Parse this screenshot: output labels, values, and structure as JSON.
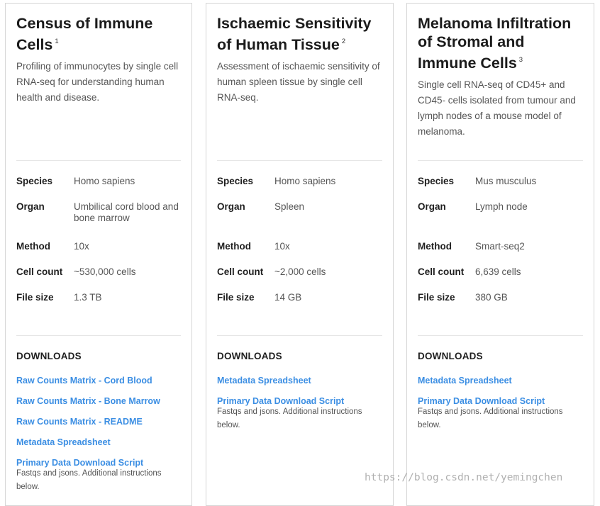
{
  "cards": [
    {
      "title": "Census of Immune Cells",
      "sup": "1",
      "description": "Profiling of immunocytes by single cell RNA-seq for understanding human health and disease.",
      "meta": {
        "species_label": "Species",
        "species": "Homo sapiens",
        "organ_label": "Organ",
        "organ": "Umbilical cord blood and bone marrow",
        "method_label": "Method",
        "method": "10x",
        "cell_count_label": "Cell count",
        "cell_count": "~530,000 cells",
        "file_size_label": "File size",
        "file_size": "1.3 TB"
      },
      "downloads_heading": "DOWNLOADS",
      "links": [
        "Raw Counts Matrix - Cord Blood",
        "Raw Counts Matrix - Bone Marrow",
        "Raw Counts Matrix - README",
        "Metadata Spreadsheet",
        "Primary Data Download Script"
      ],
      "script_note": "Fastqs and jsons. Additional instructions below."
    },
    {
      "title": "Ischaemic Sensitivity of Human Tissue",
      "sup": "2",
      "description": "Assessment of ischaemic sensitivity of human spleen tissue by single cell RNA-seq.",
      "meta": {
        "species_label": "Species",
        "species": "Homo sapiens",
        "organ_label": "Organ",
        "organ": "Spleen",
        "method_label": "Method",
        "method": "10x",
        "cell_count_label": "Cell count",
        "cell_count": "~2,000 cells",
        "file_size_label": "File size",
        "file_size": "14 GB"
      },
      "downloads_heading": "DOWNLOADS",
      "links": [
        "Metadata Spreadsheet",
        "Primary Data Download Script"
      ],
      "script_note": "Fastqs and jsons. Additional instructions below."
    },
    {
      "title": "Melanoma Infiltration of Stromal and Immune Cells",
      "sup": "3",
      "description": "Single cell RNA-seq of CD45+ and CD45- cells isolated from tumour and lymph nodes of a mouse model of melanoma.",
      "meta": {
        "species_label": "Species",
        "species": "Mus musculus",
        "organ_label": "Organ",
        "organ": "Lymph node",
        "method_label": "Method",
        "method": "Smart-seq2",
        "cell_count_label": "Cell count",
        "cell_count": "6,639 cells",
        "file_size_label": "File size",
        "file_size": "380 GB"
      },
      "downloads_heading": "DOWNLOADS",
      "links": [
        "Metadata Spreadsheet",
        "Primary Data Download Script"
      ],
      "script_note": "Fastqs and jsons. Additional instructions below."
    }
  ],
  "watermark": "https://blog.csdn.net/yemingchen",
  "colors": {
    "link": "#3b8ee3",
    "border": "#d6d6d6",
    "divider": "#e6e6e6"
  }
}
